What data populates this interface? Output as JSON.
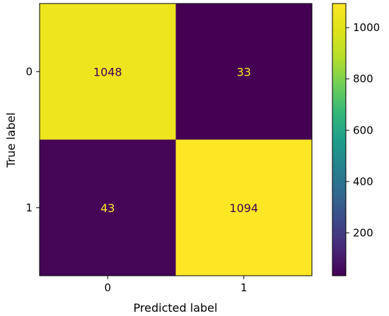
{
  "chart_data": {
    "type": "heatmap",
    "xlabel": "Predicted label",
    "ylabel": "True label",
    "x_categories": [
      "0",
      "1"
    ],
    "y_categories": [
      "0",
      "1"
    ],
    "matrix": [
      [
        1048,
        33
      ],
      [
        43,
        1094
      ]
    ],
    "colormap": "viridis",
    "colorbar": {
      "ticks": [
        "200",
        "400",
        "600",
        "800",
        "1000"
      ],
      "tick_values": [
        200,
        400,
        600,
        800,
        1000
      ],
      "range": [
        33,
        1094
      ]
    },
    "annotation_colors": {
      "on_dark": "#fde725",
      "on_light": "#440154"
    }
  }
}
